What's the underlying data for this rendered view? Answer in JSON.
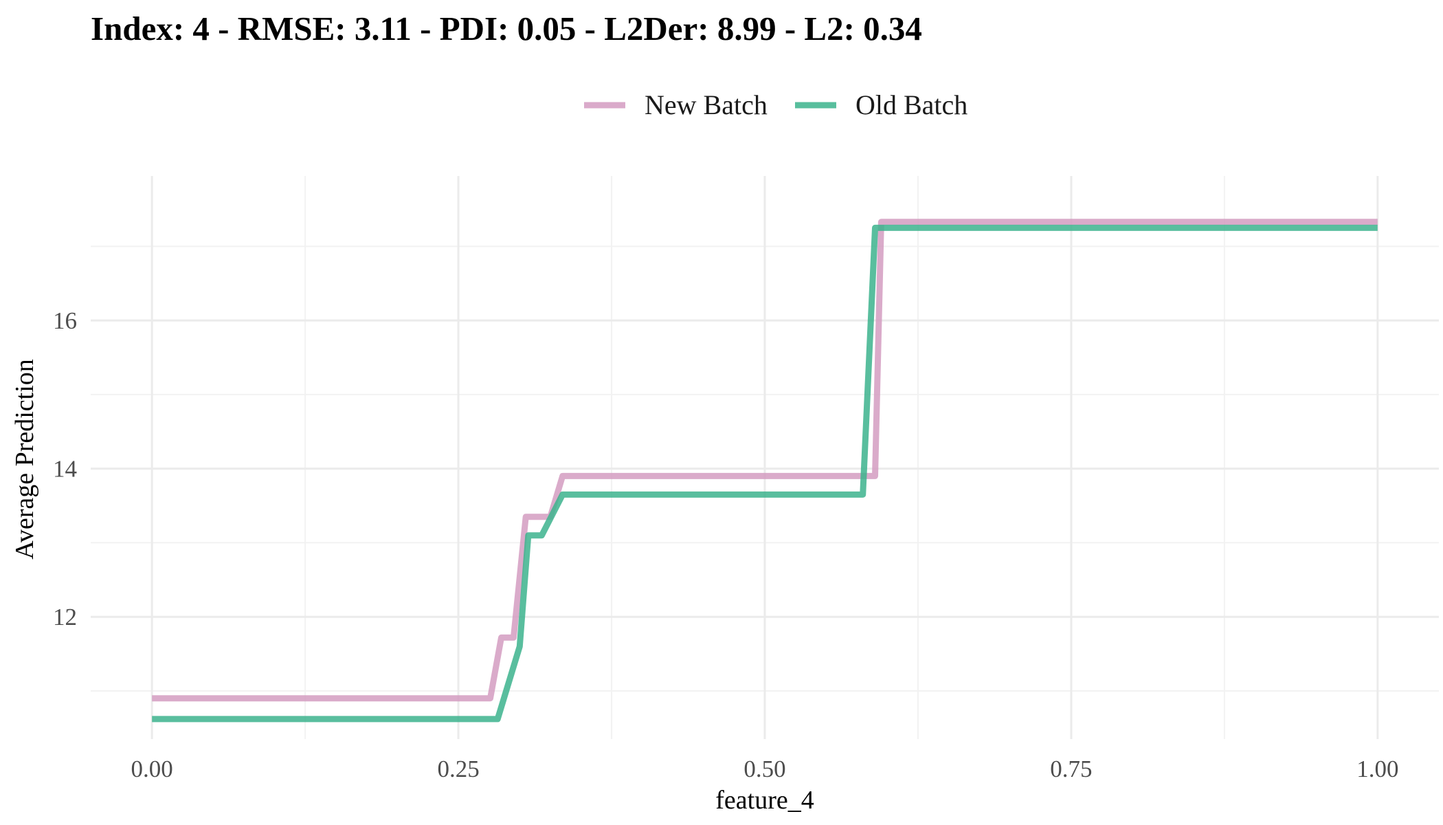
{
  "chart_data": {
    "type": "line",
    "title": "Index: 4 - RMSE: 3.11 - PDI: 0.05 - L2Der: 8.99 - L2: 0.34",
    "xlabel": "feature_4",
    "ylabel": "Average Prediction",
    "xlim": [
      -0.05,
      1.05
    ],
    "ylim": [
      10.35,
      17.95
    ],
    "x_ticks": [
      0.0,
      0.25,
      0.5,
      0.75,
      1.0
    ],
    "x_tick_labels": [
      "0.00",
      "0.25",
      "0.50",
      "0.75",
      "1.00"
    ],
    "y_ticks": [
      12,
      14,
      16
    ],
    "y_tick_labels": [
      "12",
      "14",
      "16"
    ],
    "grid": true,
    "legend_position": "top",
    "series": [
      {
        "name": "New Batch",
        "color": "#d49cc1",
        "x": [
          0.0,
          0.276,
          0.285,
          0.295,
          0.305,
          0.325,
          0.335,
          0.59,
          0.595,
          1.0
        ],
        "y": [
          10.9,
          10.9,
          11.72,
          11.72,
          13.35,
          13.35,
          13.9,
          13.9,
          17.33,
          17.33
        ]
      },
      {
        "name": "Old Batch",
        "color": "#3cb38d",
        "x": [
          0.0,
          0.282,
          0.3,
          0.307,
          0.318,
          0.335,
          0.58,
          0.59,
          1.0
        ],
        "y": [
          10.62,
          10.62,
          11.6,
          13.1,
          13.1,
          13.65,
          13.65,
          17.25,
          17.25
        ]
      }
    ]
  }
}
